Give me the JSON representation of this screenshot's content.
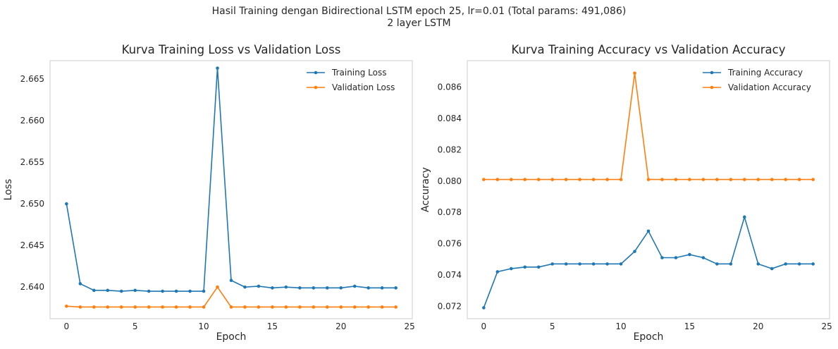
{
  "figure": {
    "suptitle_line1": "Hasil Training dengan Bidirectional LSTM epoch 25, lr=0.01 (Total params: 491,086)",
    "suptitle_line2": "2 layer LSTM"
  },
  "colors": {
    "training": "#1f77b4",
    "validation": "#ff7f0e"
  },
  "chart_data": [
    {
      "type": "line",
      "title": "Kurva Training Loss vs Validation Loss",
      "xlabel": "Epoch",
      "ylabel": "Loss",
      "xlim": [
        -1.2,
        25.2
      ],
      "ylim": [
        2.6362,
        2.6672
      ],
      "xticks": [
        0,
        5,
        10,
        15,
        20,
        25
      ],
      "yticks": [
        2.64,
        2.645,
        2.65,
        2.655,
        2.66,
        2.665
      ],
      "ytick_decimals": 3,
      "grid": false,
      "legend": "top-right",
      "x": [
        0,
        1,
        2,
        3,
        4,
        5,
        6,
        7,
        8,
        9,
        10,
        11,
        12,
        13,
        14,
        15,
        16,
        17,
        18,
        19,
        20,
        21,
        22,
        23,
        24
      ],
      "series": [
        {
          "name": "Training Loss",
          "color": "#1f77b4",
          "values": [
            2.65,
            2.6404,
            2.6396,
            2.6396,
            2.6395,
            2.6396,
            2.6395,
            2.6395,
            2.6395,
            2.6395,
            2.6395,
            2.6663,
            2.6408,
            2.64,
            2.6401,
            2.6399,
            2.64,
            2.6399,
            2.6399,
            2.6399,
            2.6399,
            2.6401,
            2.6399,
            2.6399,
            2.6399
          ]
        },
        {
          "name": "Validation Loss",
          "color": "#ff7f0e",
          "values": [
            2.6377,
            2.6376,
            2.6376,
            2.6376,
            2.6376,
            2.6376,
            2.6376,
            2.6376,
            2.6376,
            2.6376,
            2.6376,
            2.64,
            2.6376,
            2.6376,
            2.6376,
            2.6376,
            2.6376,
            2.6376,
            2.6376,
            2.6376,
            2.6376,
            2.6376,
            2.6376,
            2.6376,
            2.6376
          ]
        }
      ]
    },
    {
      "type": "line",
      "title": "Kurva Training Accuracy vs Validation Accuracy",
      "xlabel": "Epoch",
      "ylabel": "Accuracy",
      "xlim": [
        -1.2,
        25.2
      ],
      "ylim": [
        0.0712,
        0.0877
      ],
      "xticks": [
        0,
        5,
        10,
        15,
        20,
        25
      ],
      "yticks": [
        0.072,
        0.074,
        0.076,
        0.078,
        0.08,
        0.082,
        0.084,
        0.086
      ],
      "ytick_decimals": 3,
      "grid": false,
      "legend": "top-right",
      "x": [
        0,
        1,
        2,
        3,
        4,
        5,
        6,
        7,
        8,
        9,
        10,
        11,
        12,
        13,
        14,
        15,
        16,
        17,
        18,
        19,
        20,
        21,
        22,
        23,
        24
      ],
      "series": [
        {
          "name": "Training Accuracy",
          "color": "#1f77b4",
          "values": [
            0.0719,
            0.0742,
            0.0744,
            0.0745,
            0.0745,
            0.0747,
            0.0747,
            0.0747,
            0.0747,
            0.0747,
            0.0747,
            0.0755,
            0.0768,
            0.0751,
            0.0751,
            0.0753,
            0.0751,
            0.0747,
            0.0747,
            0.0777,
            0.0747,
            0.0744,
            0.0747,
            0.0747,
            0.0747
          ]
        },
        {
          "name": "Validation Accuracy",
          "color": "#ff7f0e",
          "values": [
            0.0801,
            0.0801,
            0.0801,
            0.0801,
            0.0801,
            0.0801,
            0.0801,
            0.0801,
            0.0801,
            0.0801,
            0.0801,
            0.0869,
            0.0801,
            0.0801,
            0.0801,
            0.0801,
            0.0801,
            0.0801,
            0.0801,
            0.0801,
            0.0801,
            0.0801,
            0.0801,
            0.0801,
            0.0801
          ]
        }
      ]
    }
  ]
}
